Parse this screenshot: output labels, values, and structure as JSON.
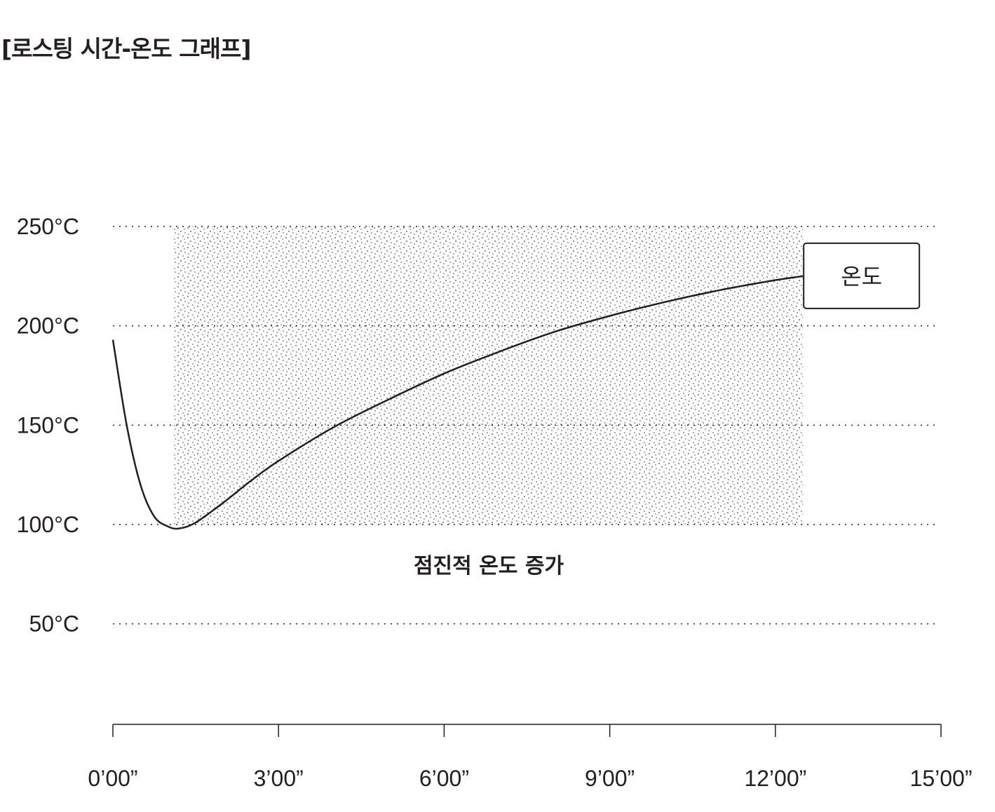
{
  "title": "[로스팅 시간-온도 그래프]",
  "chart_data": {
    "type": "line",
    "title": "[로스팅 시간-온도 그래프]",
    "xlabel": "",
    "ylabel": "",
    "xlim": [
      0,
      15
    ],
    "ylim": [
      0,
      250
    ],
    "x_ticks": [
      0,
      3,
      6,
      9,
      12,
      15
    ],
    "x_tick_labels": [
      "0’00”",
      "3’00”",
      "6’00”",
      "9’00”",
      "12’00”",
      "15’00”"
    ],
    "y_ticks": [
      50,
      100,
      150,
      200,
      250
    ],
    "y_tick_labels": [
      "50°C",
      "100°C",
      "150°C",
      "200°C",
      "250°C"
    ],
    "grid": "horizontal-dotted",
    "series": [
      {
        "name": "온도",
        "x": [
          0,
          0.25,
          0.5,
          0.75,
          1.0,
          1.2,
          1.5,
          2.0,
          2.5,
          3.0,
          4.0,
          5.0,
          6.0,
          7.0,
          8.0,
          9.0,
          10.0,
          11.0,
          12.0,
          12.5
        ],
        "y": [
          193,
          150,
          120,
          104,
          99,
          98,
          101,
          111,
          122,
          132,
          149,
          163,
          176,
          187,
          197,
          205,
          212,
          218,
          223,
          225
        ]
      }
    ],
    "shaded_region": {
      "x": [
        1.1,
        12.5
      ],
      "y": [
        100,
        250
      ],
      "pattern": "stipple"
    },
    "annotations": [
      {
        "text": "점진적 온도 증가",
        "x": 6.8,
        "y": 80
      }
    ],
    "legend": {
      "label": "온도",
      "placement": "line-end-label"
    }
  }
}
